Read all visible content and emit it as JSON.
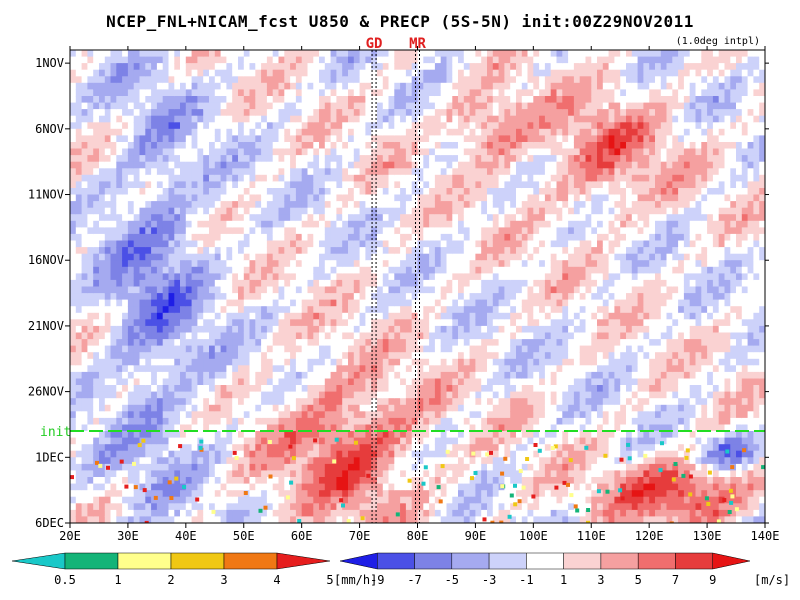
{
  "title": "NCEP_FNL+NICAM_fcst U850 & PRECP (5S-5N) init:00Z29NOV2011",
  "subtitle": "(1.0deg intpl)",
  "chart_data": {
    "type": "heatmap",
    "x_axis": {
      "ticks": [
        20,
        30,
        40,
        50,
        60,
        70,
        80,
        90,
        100,
        110,
        120,
        130,
        140
      ],
      "tick_labels": [
        "20E",
        "30E",
        "40E",
        "50E",
        "60E",
        "70E",
        "80E",
        "90E",
        "100E",
        "110E",
        "120E",
        "130E",
        "140E"
      ],
      "range": [
        20,
        140
      ]
    },
    "y_axis": {
      "ticks": [
        "1NOV",
        "6NOV",
        "11NOV",
        "16NOV",
        "21NOV",
        "26NOV",
        "1DEC",
        "6DEC"
      ],
      "day_offsets": [
        0,
        5,
        10,
        15,
        20,
        25,
        30,
        35
      ],
      "range_days": [
        -1,
        35
      ],
      "direction": "downward"
    },
    "reference_lines": [
      {
        "label": "GD",
        "lon": 72.5
      },
      {
        "label": "MR",
        "lon": 80
      }
    ],
    "init_line": {
      "label": "init",
      "day": 28
    },
    "u850_features": [
      {
        "lon_range": [
          25,
          45
        ],
        "day_range": [
          0,
          35
        ],
        "u": -5
      },
      {
        "lon_range": [
          55,
          82
        ],
        "day_range": [
          23,
          35
        ],
        "u": 7
      },
      {
        "lon_range": [
          85,
          100
        ],
        "day_range": [
          2,
          8
        ],
        "u": 6
      },
      {
        "lon_range": [
          100,
          125
        ],
        "day_range": [
          2,
          12
        ],
        "u": 5
      },
      {
        "lon_range": [
          112,
          140
        ],
        "day_range": [
          30,
          35
        ],
        "u": 8
      },
      {
        "lon_range": [
          128,
          140
        ],
        "day_range": [
          28,
          31
        ],
        "u": -6
      }
    ],
    "colorbars": [
      {
        "name": "PRECP",
        "unit": "[mm/h]",
        "tick_labels": [
          "0.5",
          "1",
          "2",
          "3",
          "4",
          "5"
        ],
        "colors": [
          "#19c8c8",
          "#14b478",
          "#ffff8c",
          "#f0c814",
          "#f07814",
          "#e61e1e"
        ]
      },
      {
        "name": "U850",
        "unit": "[m/s]",
        "tick_labels": [
          "-9",
          "-7",
          "-5",
          "-3",
          "-1",
          "1",
          "3",
          "5",
          "7",
          "9"
        ],
        "colors": [
          "#1e1ee6",
          "#4b50e6",
          "#7d82e6",
          "#a5aaf0",
          "#cdd2fa",
          "#ffffff",
          "#fad2d2",
          "#f5a0a0",
          "#f06e6e",
          "#e63c3c",
          "#e61414"
        ]
      }
    ]
  }
}
